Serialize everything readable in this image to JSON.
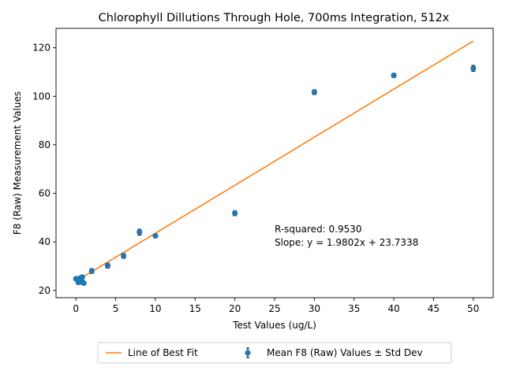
{
  "chart_data": {
    "type": "scatter",
    "title": "Chlorophyll Dillutions Through Hole, 700ms Integration, 512x",
    "xlabel": "Test Values (ug/L)",
    "ylabel": "F8 (Raw) Measurement Values",
    "xlim": [
      -2.5,
      52.5
    ],
    "ylim": [
      17.0,
      128.0
    ],
    "x_ticks": [
      0,
      5,
      10,
      15,
      20,
      25,
      30,
      35,
      40,
      45,
      50
    ],
    "y_ticks": [
      20,
      40,
      60,
      80,
      100,
      120
    ],
    "grid": false,
    "legend_position": "bottom-center",
    "series": [
      {
        "name": "Mean F8 (Raw) Values ± Std Dev",
        "color": "#1f77b4",
        "marker": "circle",
        "error_bars": true,
        "points": [
          {
            "x": 0,
            "y": 24.8,
            "err": 0.6
          },
          {
            "x": 0.2,
            "y": 24.5,
            "err": 0.5
          },
          {
            "x": 0.3,
            "y": 23.3,
            "err": 0.5
          },
          {
            "x": 0.4,
            "y": 24.0,
            "err": 0.5
          },
          {
            "x": 0.5,
            "y": 25.0,
            "err": 0.5
          },
          {
            "x": 0.6,
            "y": 23.5,
            "err": 0.5
          },
          {
            "x": 0.7,
            "y": 24.3,
            "err": 0.5
          },
          {
            "x": 0.8,
            "y": 25.5,
            "err": 0.6
          },
          {
            "x": 0.9,
            "y": 23.2,
            "err": 0.5
          },
          {
            "x": 1.0,
            "y": 23.0,
            "err": 0.5
          },
          {
            "x": 2,
            "y": 28.0,
            "err": 1.0
          },
          {
            "x": 4,
            "y": 30.2,
            "err": 1.0
          },
          {
            "x": 6,
            "y": 34.2,
            "err": 1.0
          },
          {
            "x": 8,
            "y": 44.0,
            "err": 1.2
          },
          {
            "x": 10,
            "y": 42.5,
            "err": 0.8
          },
          {
            "x": 20,
            "y": 51.8,
            "err": 1.0
          },
          {
            "x": 30,
            "y": 101.7,
            "err": 1.0
          },
          {
            "x": 40,
            "y": 108.6,
            "err": 0.9
          },
          {
            "x": 50,
            "y": 111.5,
            "err": 1.2
          }
        ]
      },
      {
        "name": "Line of Best Fit",
        "color": "#ff7f0e",
        "kind": "line",
        "slope": 1.9802,
        "intercept": 23.7338,
        "x_range": [
          0,
          50
        ]
      }
    ],
    "annotations": [
      {
        "text": "R-squared: 0.9530",
        "x": 25,
        "y": 44.0
      },
      {
        "text": "Slope: y = 1.9802x + 23.7338",
        "x": 25,
        "y": 38.5
      }
    ]
  }
}
